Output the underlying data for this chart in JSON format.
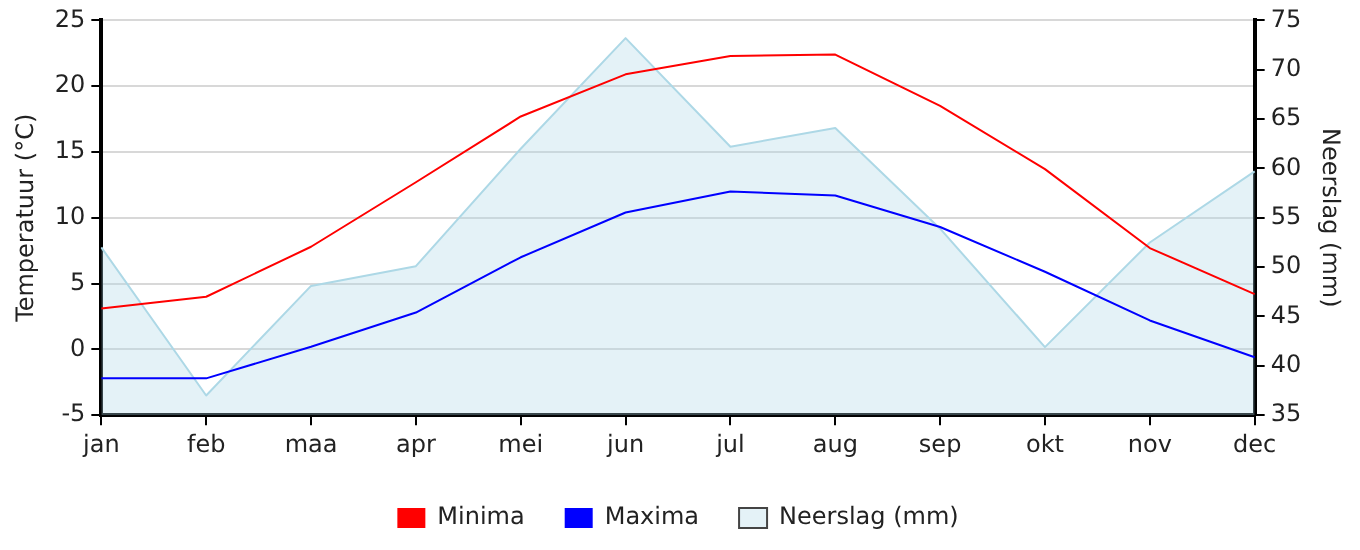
{
  "chart_data": {
    "type": "line",
    "categories": [
      "jan",
      "feb",
      "maa",
      "apr",
      "mei",
      "jun",
      "jul",
      "aug",
      "sep",
      "okt",
      "nov",
      "dec"
    ],
    "ylabel": "Temperatuur (°C)",
    "y2label": "Neerslag (mm)",
    "ylim": [
      -5,
      25
    ],
    "yticks": [
      -5,
      0,
      5,
      10,
      15,
      20,
      25
    ],
    "y2lim": [
      35,
      75
    ],
    "y2ticks": [
      35,
      40,
      45,
      50,
      55,
      60,
      65,
      70,
      75
    ],
    "grid": "y",
    "legend": "bottom",
    "marker": "none",
    "series": [
      {
        "name": "Minima",
        "color": "#ff0000",
        "values": [
          3.1,
          4.0,
          7.8,
          12.7,
          17.7,
          20.9,
          22.3,
          22.4,
          18.5,
          13.7,
          7.7,
          4.2
        ]
      },
      {
        "name": "Maxima",
        "color": "#0000ff",
        "values": [
          -2.2,
          -2.2,
          0.2,
          2.8,
          7.0,
          10.4,
          12.0,
          11.7,
          9.3,
          5.9,
          2.2,
          -0.6
        ]
      },
      {
        "name": "Neerslag (mm)",
        "type": "area",
        "axis": "y2",
        "color": "#add8e6",
        "values": [
          52.0,
          37.0,
          48.1,
          50.1,
          62.0,
          73.2,
          62.2,
          64.1,
          53.9,
          41.9,
          52.5,
          59.7
        ]
      }
    ]
  }
}
